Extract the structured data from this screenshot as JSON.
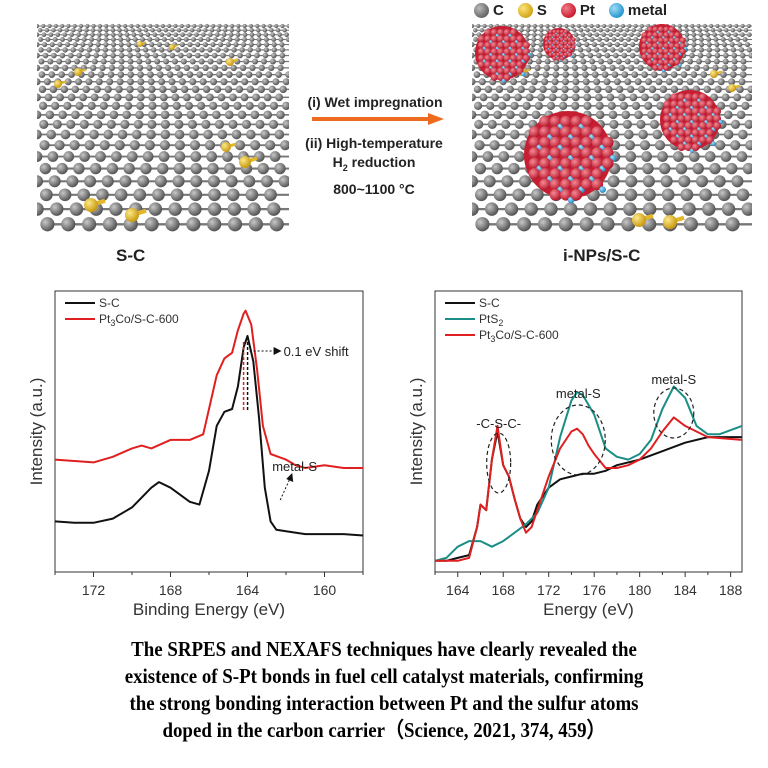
{
  "scheme": {
    "left_label": "S-C",
    "right_label": "i-NPs/S-C",
    "step1": "(i) Wet impregnation",
    "step2_line1": "(ii) High-temperature",
    "step2_line2_pre": "H",
    "step2_line2_sub": "2",
    "step2_line2_post": " reduction",
    "step3": "800~1100 °C",
    "legend": [
      {
        "label": "C",
        "color": "#7a7a7a"
      },
      {
        "label": "S",
        "color": "#e3b72a"
      },
      {
        "label": "Pt",
        "color": "#d8243a"
      },
      {
        "label": "metal",
        "color": "#39a9e0"
      }
    ],
    "arrow_color": "#ee6a1f"
  },
  "chart_data": [
    {
      "type": "line",
      "title": "",
      "xlabel": "Binding Energy (eV)",
      "ylabel": "Intensity (a.u.)",
      "xlim": [
        174,
        158
      ],
      "xticks": [
        172,
        168,
        164,
        160
      ],
      "ylim": [
        0,
        100
      ],
      "legend_position": "top-left",
      "series": [
        {
          "name": "S-C",
          "color": "#111111",
          "x": [
            174,
            173,
            172,
            171,
            170,
            169,
            168.6,
            168,
            167,
            166.5,
            166,
            165.6,
            165.2,
            164.8,
            164.5,
            164.2,
            164.0,
            163.7,
            163.4,
            163.1,
            162.8,
            162.5,
            162,
            161,
            160,
            159,
            158
          ],
          "y": [
            18,
            17.5,
            17.5,
            19,
            23,
            30,
            32,
            30,
            25,
            24,
            36,
            52,
            57,
            58,
            66,
            80,
            84,
            75,
            55,
            30,
            18,
            15,
            14.5,
            13.5,
            13.5,
            13.5,
            13
          ]
        },
        {
          "name": "Pt₃Co/S-C-600",
          "color": "#e02020",
          "x": [
            174,
            173,
            172,
            171,
            170,
            169.5,
            169,
            168,
            167,
            166.3,
            166,
            165.6,
            165.2,
            164.8,
            164.5,
            164.2,
            164.1,
            163.8,
            163.5,
            163.2,
            162.8,
            162.4,
            162,
            161.5,
            161,
            160,
            159,
            158
          ],
          "y": [
            40,
            39.5,
            39,
            41,
            44,
            45,
            44,
            47,
            47,
            49,
            58,
            70,
            76,
            78,
            86,
            92,
            93,
            88,
            72,
            52,
            42,
            41,
            40,
            38,
            37,
            38,
            37,
            37
          ]
        }
      ],
      "annotations": [
        {
          "text": "0.1 eV shift",
          "x": 164.1
        },
        {
          "text": "metal-S",
          "x": 162.3
        }
      ]
    },
    {
      "type": "line",
      "title": "",
      "xlabel": "Energy (eV)",
      "ylabel": "Intensity (a.u.)",
      "xlim": [
        162,
        189
      ],
      "xticks": [
        164,
        168,
        172,
        176,
        180,
        184,
        188
      ],
      "ylim": [
        0,
        100
      ],
      "legend_position": "top-left",
      "series": [
        {
          "name": "S-C",
          "color": "#111111",
          "x": [
            162,
            163,
            164,
            165,
            165.7,
            166,
            166.5,
            167,
            167.5,
            168,
            168.5,
            169,
            169.5,
            170,
            170.5,
            171,
            172,
            173,
            174,
            175,
            176,
            177,
            178,
            180,
            182,
            184,
            186,
            189
          ],
          "y": [
            4,
            4,
            5,
            6,
            16,
            24,
            22,
            40,
            50,
            38,
            34,
            26,
            19,
            16,
            18,
            24,
            30,
            33,
            34,
            35,
            35,
            36,
            38,
            40,
            43,
            46,
            48,
            48
          ]
        },
        {
          "name": "PtS₂",
          "color": "#1a8e86",
          "x": [
            162,
            163,
            164,
            165,
            166,
            167,
            168,
            169,
            170,
            171,
            172,
            173,
            174,
            174.5,
            175,
            176,
            177,
            178,
            179,
            180,
            181,
            182,
            183,
            184,
            185,
            186,
            187,
            189
          ],
          "y": [
            4,
            5,
            9,
            11,
            11,
            9,
            11,
            14,
            17,
            21,
            30,
            48,
            61,
            64,
            63,
            56,
            44,
            41,
            40,
            42,
            47,
            58,
            66,
            62,
            52,
            49,
            49,
            52
          ]
        },
        {
          "name": "Pt₃Co/S-C-600",
          "color": "#e02020",
          "x": [
            162,
            163,
            164,
            165,
            165.7,
            166,
            166.5,
            167,
            167.5,
            168,
            168.5,
            169,
            169.5,
            170,
            170.5,
            171,
            172,
            173,
            174,
            174.5,
            175,
            175.5,
            176,
            177,
            178,
            179,
            180,
            181,
            182,
            183,
            184,
            185,
            186,
            189
          ],
          "y": [
            4,
            4,
            4,
            5,
            16,
            24,
            22,
            40,
            52,
            38,
            34,
            26,
            19,
            14,
            16,
            22,
            34,
            44,
            50,
            51,
            49,
            45,
            42,
            37,
            37,
            38,
            40,
            44,
            50,
            55,
            52,
            50,
            48,
            47
          ]
        }
      ],
      "annotations": [
        {
          "text": "-C-S-C-",
          "x": 167.5
        },
        {
          "text": "metal-S",
          "x": 174.5
        },
        {
          "text": "metal-S",
          "x": 183
        }
      ]
    }
  ],
  "caption": {
    "line1": "The SRPES and NEXAFS techniques have clearly revealed the",
    "line2": "existence of S-Pt bonds in fuel cell catalyst materials, confirming",
    "line3": "the strong bonding interaction between Pt and the sulfur atoms",
    "line4": "doped in the carbon carrier（Science, 2021, 374, 459）"
  }
}
